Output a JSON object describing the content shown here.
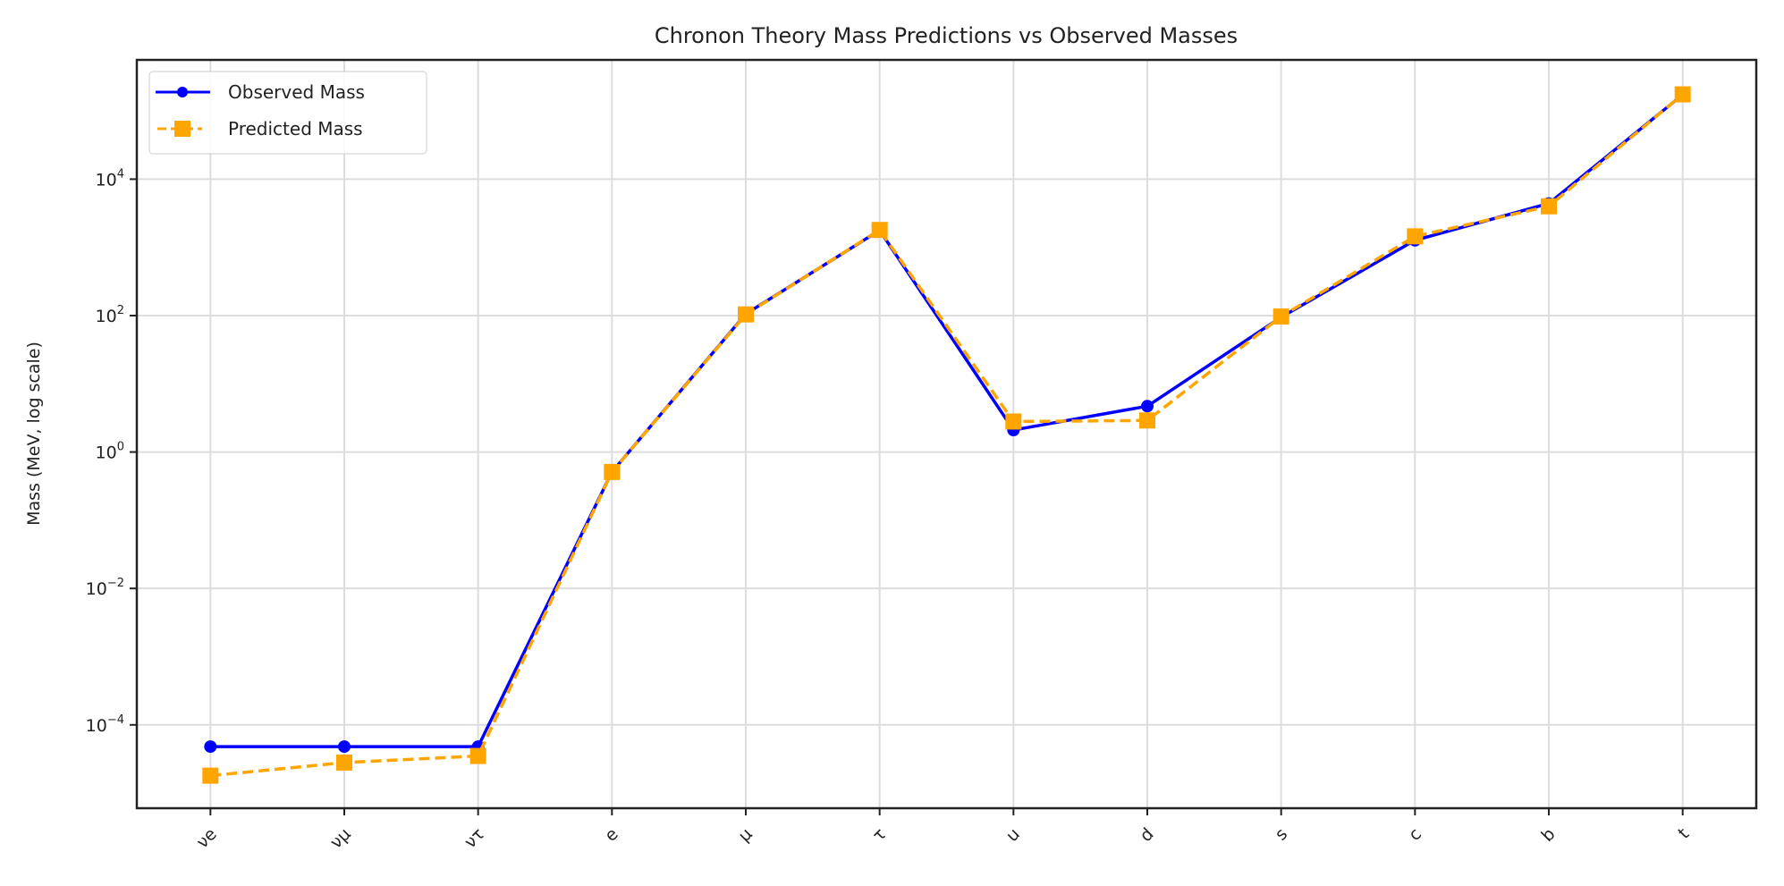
{
  "chart_data": {
    "type": "line",
    "title": "Chronon Theory Mass Predictions vs Observed Masses",
    "xlabel": "",
    "ylabel": "Mass (MeV, log scale)",
    "yscale": "log",
    "ylim": [
      6e-06,
      560000.0
    ],
    "yticks": [
      0.0001,
      0.01,
      1,
      100,
      10000
    ],
    "ytick_labels": [
      [
        "10",
        "−4"
      ],
      [
        "10",
        "−2"
      ],
      [
        "10",
        "0"
      ],
      [
        "10",
        "2"
      ],
      [
        "10",
        "4"
      ]
    ],
    "categories": [
      "νe",
      "νμ",
      "ντ",
      "e",
      "μ",
      "τ",
      "u",
      "d",
      "s",
      "c",
      "b",
      "t"
    ],
    "xtick_rotation": 45,
    "grid": true,
    "legend": "top-left",
    "series": [
      {
        "name": "Observed Mass",
        "color": "#0000ff",
        "linestyle": "solid",
        "marker": "circle",
        "values": [
          4.8e-05,
          4.8e-05,
          4.8e-05,
          0.511,
          105.7,
          1777,
          2.1,
          4.7,
          95,
          1270,
          4400,
          173000
        ]
      },
      {
        "name": "Predicted Mass",
        "color": "#ffa500",
        "linestyle": "dashed",
        "marker": "square",
        "values": [
          1.8e-05,
          2.8e-05,
          3.5e-05,
          0.51,
          104,
          1800,
          2.8,
          2.9,
          97,
          1450,
          4000,
          175000
        ]
      }
    ]
  }
}
